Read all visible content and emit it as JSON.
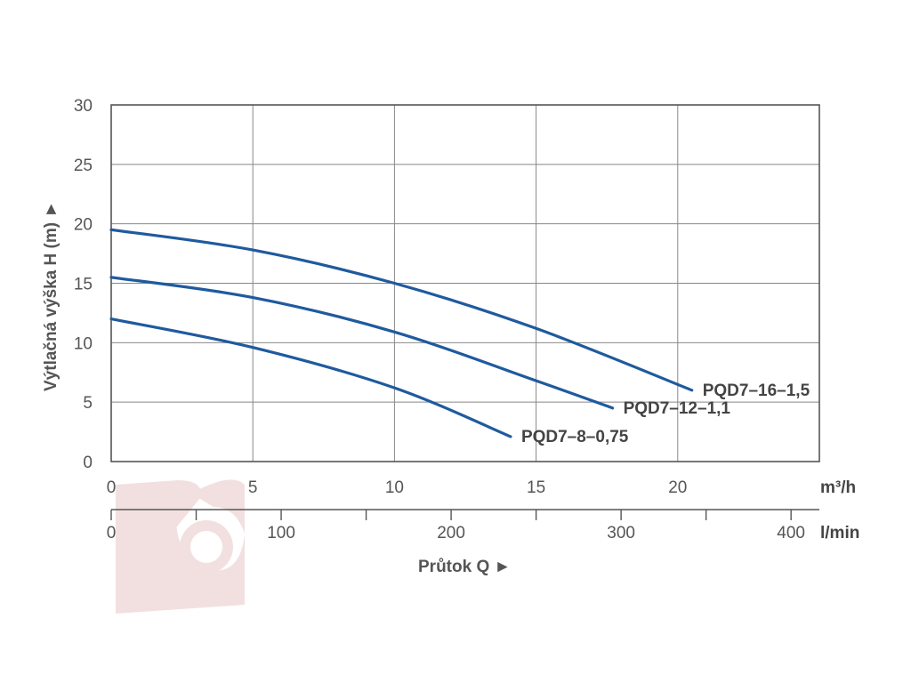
{
  "chart_data": {
    "type": "line",
    "ylabel": "Výtlačná výška H (m) ►",
    "xlabel": "Průtok Q ►",
    "x_unit": "m³/h",
    "x2_unit": "l/min",
    "xlim": [
      0,
      25
    ],
    "ylim": [
      0,
      30
    ],
    "x_ticks": [
      "0",
      "5",
      "10",
      "15",
      "20"
    ],
    "x2_ticks": [
      "0",
      "100",
      "200",
      "300",
      "400"
    ],
    "y_ticks": [
      "0",
      "5",
      "10",
      "15",
      "20",
      "25",
      "30"
    ],
    "grid": true,
    "series": [
      {
        "name": "PQD7–16–1,5",
        "color": "#1f5a9e",
        "x": [
          0,
          5,
          10,
          15,
          20.5
        ],
        "y": [
          19.5,
          17.8,
          15.0,
          11.2,
          6.0
        ]
      },
      {
        "name": "PQD7–12–1,1",
        "color": "#1f5a9e",
        "x": [
          0,
          5,
          10,
          15,
          17.7
        ],
        "y": [
          15.5,
          13.8,
          10.9,
          6.8,
          4.5
        ]
      },
      {
        "name": "PQD7–8–0,75",
        "color": "#1f5a9e",
        "x": [
          0,
          5,
          10,
          14.1
        ],
        "y": [
          12.0,
          9.6,
          6.2,
          2.1
        ]
      }
    ]
  },
  "colors": {
    "grid": "#888888",
    "line": "#1f5a9e",
    "watermark": "#e8c8c8"
  },
  "watermark": {
    "icon": "company-logo-icon"
  }
}
